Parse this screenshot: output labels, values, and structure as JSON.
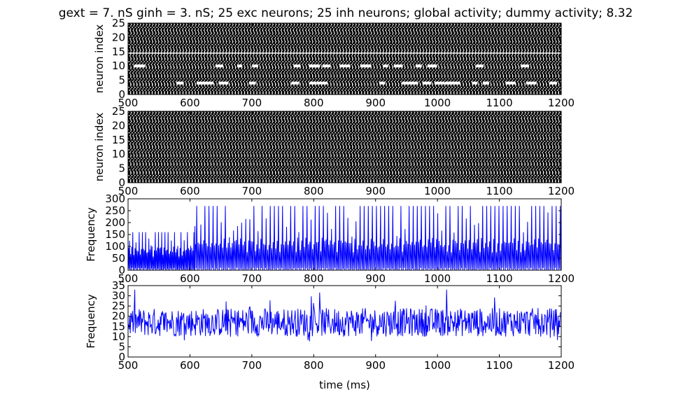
{
  "title": "gext = 7. nS ginh = 3. nS; 25 exc neurons; 25 inh neurons; global activity; dummy activity; 8.32",
  "colors": {
    "raster": "#000000",
    "line": "#0000ff",
    "axes": "#000000"
  },
  "chart_data": [
    {
      "type": "scatter",
      "ylabel": "neuron index",
      "xlabel": "",
      "xlim": [
        500,
        1200
      ],
      "ylim": [
        0,
        25
      ],
      "xticks": [
        "500",
        "600",
        "700",
        "800",
        "900",
        "1000",
        "1100",
        "1200"
      ],
      "yticks": [
        "0",
        "5",
        "10",
        "15",
        "20",
        "25"
      ],
      "neurons": 25,
      "sparse_neurons": [
        4,
        10
      ],
      "silent_rows": [
        14.5
      ]
    },
    {
      "type": "scatter",
      "ylabel": "neuron index",
      "xlabel": "",
      "xlim": [
        500,
        1200
      ],
      "ylim": [
        0,
        25
      ],
      "xticks": [
        "500",
        "600",
        "700",
        "800",
        "900",
        "1000",
        "1100",
        "1200"
      ],
      "yticks": [
        "0",
        "5",
        "10",
        "15",
        "20",
        "25"
      ],
      "neurons": 25,
      "sparse_neurons": [],
      "silent_rows": [
        2,
        4
      ]
    },
    {
      "type": "line",
      "ylabel": "Frequency",
      "xlabel": "",
      "xlim": [
        500,
        1200
      ],
      "ylim": [
        0,
        300
      ],
      "xticks": [
        "500",
        "600",
        "700",
        "800",
        "900",
        "1000",
        "1100",
        "1200"
      ],
      "yticks": [
        "0",
        "50",
        "100",
        "150",
        "200",
        "250",
        "300"
      ],
      "segments": [
        {
          "x_range": [
            500,
            608
          ],
          "peak": 160,
          "sub_peak": 95,
          "period": 5.2
        },
        {
          "x_range": [
            608,
            1200
          ],
          "peak": 270,
          "sub_peak": 125,
          "period": 6.6
        }
      ],
      "transition_x": 608,
      "transition_value": 185
    },
    {
      "type": "line",
      "ylabel": "Frequency",
      "xlabel": "time (ms)",
      "xlim": [
        500,
        1200
      ],
      "ylim": [
        0,
        35
      ],
      "xticks": [
        "500",
        "600",
        "700",
        "800",
        "900",
        "1000",
        "1100",
        "1200"
      ],
      "yticks": [
        "0",
        "5",
        "10",
        "15",
        "20",
        "25",
        "30",
        "35"
      ],
      "mean": 17,
      "range": [
        4,
        33
      ]
    }
  ]
}
